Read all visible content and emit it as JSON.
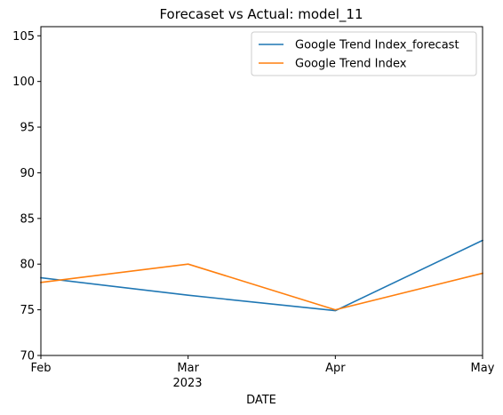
{
  "chart_data": {
    "type": "line",
    "title": "Forecaset vs Actual: model_11",
    "xlabel": "DATE",
    "ylabel": "",
    "x": [
      "Feb",
      "Mar",
      "Apr",
      "May"
    ],
    "x_year_label": "2023",
    "ylim": [
      70,
      106
    ],
    "yticks": [
      70,
      75,
      80,
      85,
      90,
      95,
      100,
      105
    ],
    "grid": false,
    "legend_position": "top-right",
    "series": [
      {
        "name": "Google Trend Index_forecast",
        "color": "#1f77b4",
        "values": [
          78.5,
          76.6,
          74.9,
          82.6
        ]
      },
      {
        "name": "Google Trend Index",
        "color": "#ff7f0e",
        "values": [
          78.0,
          80.0,
          75.0,
          79.0
        ]
      }
    ]
  }
}
